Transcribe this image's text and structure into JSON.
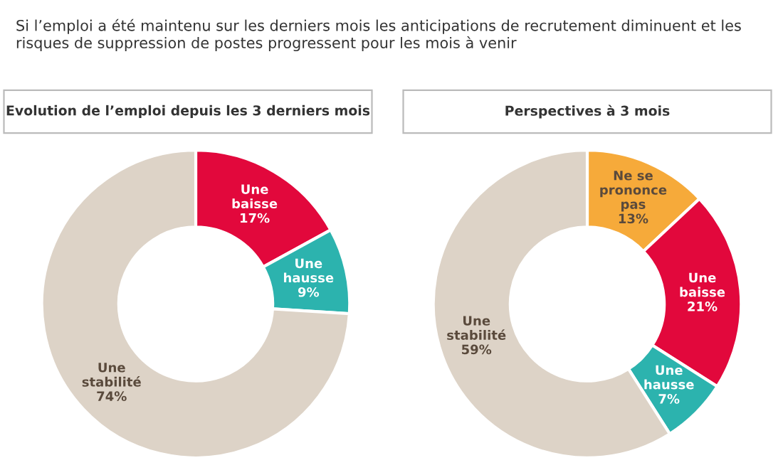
{
  "chart_data": [
    {
      "type": "donut",
      "subtitle": "Si l’emploi a été maintenu sur les derniers mois les anticipations de recrutement diminuent et les risques de suppression de postes progressent pour les mois à venir",
      "title": "Evolution de l’emploi depuis les 3 derniers mois",
      "categories": [
        "Une baisse",
        "Une hausse",
        "Une stabilité"
      ],
      "values": [
        17,
        9,
        74
      ],
      "value_labels": [
        "17%",
        "9%",
        "74%"
      ],
      "colors": [
        "#e2083c",
        "#2cb3ae",
        "#ddd3c7"
      ]
    },
    {
      "type": "donut",
      "title": "Perspectives à 3 mois",
      "categories": [
        "Ne se prononce pas",
        "Une baisse",
        "Une hausse",
        "Une stabilité"
      ],
      "values": [
        13,
        21,
        7,
        59
      ],
      "value_labels": [
        "13%",
        "21%",
        "7%",
        "59%"
      ],
      "colors": [
        "#f6aa3a",
        "#e2083c",
        "#2cb3ae",
        "#ddd3c7"
      ]
    }
  ]
}
